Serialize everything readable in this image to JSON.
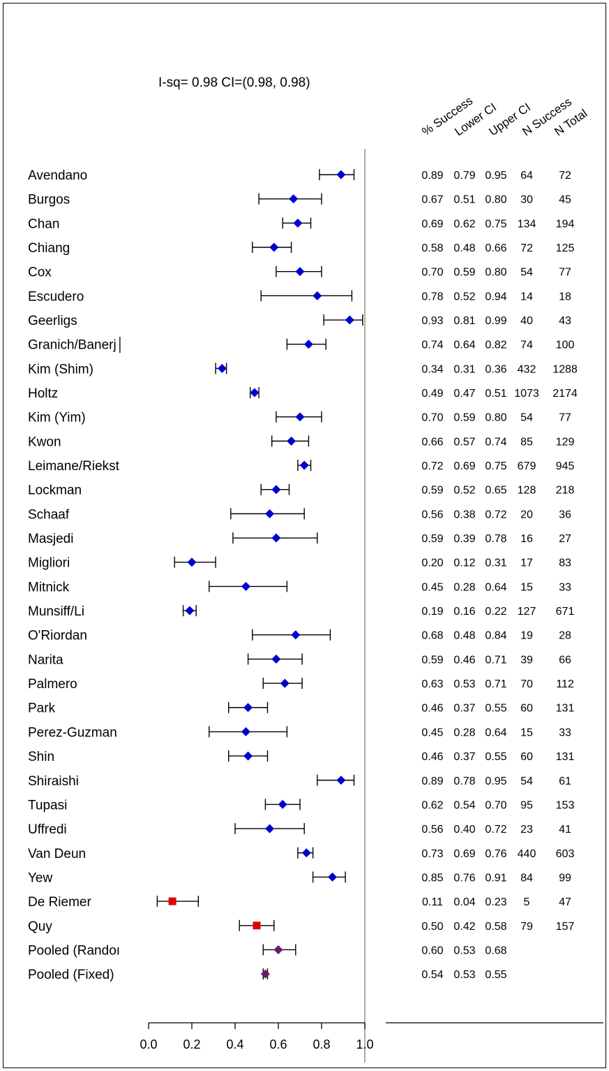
{
  "chart_data": {
    "type": "forest",
    "title": "I-sq= 0.98 CI=(0.98, 0.98)",
    "xlim": [
      0.0,
      1.0
    ],
    "x_ticks": [
      "0.0",
      "0.2",
      "0.4",
      "0.6",
      "0.8",
      "1.0"
    ],
    "column_headers": [
      "% Success",
      "Lower CI",
      "Upper CI",
      "N Success",
      "N Total"
    ],
    "colors": {
      "diamond": "#0000cc",
      "square": "#e00000",
      "pooled": "#6a1a6a",
      "reference_line": "#808080"
    },
    "rows": [
      {
        "study": "Avendano",
        "marker": "diamond",
        "est": 0.89,
        "lo": 0.79,
        "hi": 0.95,
        "pct": "0.89",
        "low": "0.79",
        "up": "0.95",
        "ns": "64",
        "nt": "72"
      },
      {
        "study": "Burgos",
        "marker": "diamond",
        "est": 0.67,
        "lo": 0.51,
        "hi": 0.8,
        "pct": "0.67",
        "low": "0.51",
        "up": "0.80",
        "ns": "30",
        "nt": "45"
      },
      {
        "study": "Chan",
        "marker": "diamond",
        "est": 0.69,
        "lo": 0.62,
        "hi": 0.75,
        "pct": "0.69",
        "low": "0.62",
        "up": "0.75",
        "ns": "134",
        "nt": "194"
      },
      {
        "study": "Chiang",
        "marker": "diamond",
        "est": 0.58,
        "lo": 0.48,
        "hi": 0.66,
        "pct": "0.58",
        "low": "0.48",
        "up": "0.66",
        "ns": "72",
        "nt": "125"
      },
      {
        "study": "Cox",
        "marker": "diamond",
        "est": 0.7,
        "lo": 0.59,
        "hi": 0.8,
        "pct": "0.70",
        "low": "0.59",
        "up": "0.80",
        "ns": "54",
        "nt": "77"
      },
      {
        "study": "Escudero",
        "marker": "diamond",
        "est": 0.78,
        "lo": 0.52,
        "hi": 0.94,
        "pct": "0.78",
        "low": "0.52",
        "up": "0.94",
        "ns": "14",
        "nt": "18"
      },
      {
        "study": "Geerligs",
        "marker": "diamond",
        "est": 0.93,
        "lo": 0.81,
        "hi": 0.99,
        "pct": "0.93",
        "low": "0.81",
        "up": "0.99",
        "ns": "40",
        "nt": "43"
      },
      {
        "study": "Granich/Banerj│",
        "marker": "diamond",
        "est": 0.74,
        "lo": 0.64,
        "hi": 0.82,
        "pct": "0.74",
        "low": "0.64",
        "up": "0.82",
        "ns": "74",
        "nt": "100"
      },
      {
        "study": "Kim (Shim)",
        "marker": "diamond",
        "est": 0.34,
        "lo": 0.31,
        "hi": 0.36,
        "pct": "0.34",
        "low": "0.31",
        "up": "0.36",
        "ns": "432",
        "nt": "1288"
      },
      {
        "study": "Holtz",
        "marker": "diamond",
        "est": 0.49,
        "lo": 0.47,
        "hi": 0.51,
        "pct": "0.49",
        "low": "0.47",
        "up": "0.51",
        "ns": "1073",
        "nt": "2174"
      },
      {
        "study": "Kim (Yim)",
        "marker": "diamond",
        "est": 0.7,
        "lo": 0.59,
        "hi": 0.8,
        "pct": "0.70",
        "low": "0.59",
        "up": "0.80",
        "ns": "54",
        "nt": "77"
      },
      {
        "study": "Kwon",
        "marker": "diamond",
        "est": 0.66,
        "lo": 0.57,
        "hi": 0.74,
        "pct": "0.66",
        "low": "0.57",
        "up": "0.74",
        "ns": "85",
        "nt": "129"
      },
      {
        "study": "Leimane/Riekst",
        "marker": "diamond",
        "est": 0.72,
        "lo": 0.69,
        "hi": 0.75,
        "pct": "0.72",
        "low": "0.69",
        "up": "0.75",
        "ns": "679",
        "nt": "945"
      },
      {
        "study": "Lockman",
        "marker": "diamond",
        "est": 0.59,
        "lo": 0.52,
        "hi": 0.65,
        "pct": "0.59",
        "low": "0.52",
        "up": "0.65",
        "ns": "128",
        "nt": "218"
      },
      {
        "study": "Schaaf",
        "marker": "diamond",
        "est": 0.56,
        "lo": 0.38,
        "hi": 0.72,
        "pct": "0.56",
        "low": "0.38",
        "up": "0.72",
        "ns": "20",
        "nt": "36"
      },
      {
        "study": "Masjedi",
        "marker": "diamond",
        "est": 0.59,
        "lo": 0.39,
        "hi": 0.78,
        "pct": "0.59",
        "low": "0.39",
        "up": "0.78",
        "ns": "16",
        "nt": "27"
      },
      {
        "study": "Migliori",
        "marker": "diamond",
        "est": 0.2,
        "lo": 0.12,
        "hi": 0.31,
        "pct": "0.20",
        "low": "0.12",
        "up": "0.31",
        "ns": "17",
        "nt": "83"
      },
      {
        "study": "Mitnick",
        "marker": "diamond",
        "est": 0.45,
        "lo": 0.28,
        "hi": 0.64,
        "pct": "0.45",
        "low": "0.28",
        "up": "0.64",
        "ns": "15",
        "nt": "33"
      },
      {
        "study": "Munsiff/Li",
        "marker": "diamond",
        "est": 0.19,
        "lo": 0.16,
        "hi": 0.22,
        "pct": "0.19",
        "low": "0.16",
        "up": "0.22",
        "ns": "127",
        "nt": "671"
      },
      {
        "study": "O'Riordan",
        "marker": "diamond",
        "est": 0.68,
        "lo": 0.48,
        "hi": 0.84,
        "pct": "0.68",
        "low": "0.48",
        "up": "0.84",
        "ns": "19",
        "nt": "28"
      },
      {
        "study": "Narita",
        "marker": "diamond",
        "est": 0.59,
        "lo": 0.46,
        "hi": 0.71,
        "pct": "0.59",
        "low": "0.46",
        "up": "0.71",
        "ns": "39",
        "nt": "66"
      },
      {
        "study": "Palmero",
        "marker": "diamond",
        "est": 0.63,
        "lo": 0.53,
        "hi": 0.71,
        "pct": "0.63",
        "low": "0.53",
        "up": "0.71",
        "ns": "70",
        "nt": "112"
      },
      {
        "study": "Park",
        "marker": "diamond",
        "est": 0.46,
        "lo": 0.37,
        "hi": 0.55,
        "pct": "0.46",
        "low": "0.37",
        "up": "0.55",
        "ns": "60",
        "nt": "131"
      },
      {
        "study": "Perez-Guzman",
        "marker": "diamond",
        "est": 0.45,
        "lo": 0.28,
        "hi": 0.64,
        "pct": "0.45",
        "low": "0.28",
        "up": "0.64",
        "ns": "15",
        "nt": "33"
      },
      {
        "study": "Shin",
        "marker": "diamond",
        "est": 0.46,
        "lo": 0.37,
        "hi": 0.55,
        "pct": "0.46",
        "low": "0.37",
        "up": "0.55",
        "ns": "60",
        "nt": "131"
      },
      {
        "study": "Shiraishi",
        "marker": "diamond",
        "est": 0.89,
        "lo": 0.78,
        "hi": 0.95,
        "pct": "0.89",
        "low": "0.78",
        "up": "0.95",
        "ns": "54",
        "nt": "61"
      },
      {
        "study": "Tupasi",
        "marker": "diamond",
        "est": 0.62,
        "lo": 0.54,
        "hi": 0.7,
        "pct": "0.62",
        "low": "0.54",
        "up": "0.70",
        "ns": "95",
        "nt": "153"
      },
      {
        "study": "Uffredi",
        "marker": "diamond",
        "est": 0.56,
        "lo": 0.4,
        "hi": 0.72,
        "pct": "0.56",
        "low": "0.40",
        "up": "0.72",
        "ns": "23",
        "nt": "41"
      },
      {
        "study": "Van Deun",
        "marker": "diamond",
        "est": 0.73,
        "lo": 0.69,
        "hi": 0.76,
        "pct": "0.73",
        "low": "0.69",
        "up": "0.76",
        "ns": "440",
        "nt": "603"
      },
      {
        "study": "Yew",
        "marker": "diamond",
        "est": 0.85,
        "lo": 0.76,
        "hi": 0.91,
        "pct": "0.85",
        "low": "0.76",
        "up": "0.91",
        "ns": "84",
        "nt": "99"
      },
      {
        "study": "De Riemer",
        "marker": "square",
        "est": 0.11,
        "lo": 0.04,
        "hi": 0.23,
        "pct": "0.11",
        "low": "0.04",
        "up": "0.23",
        "ns": "5",
        "nt": "47"
      },
      {
        "study": "Quy",
        "marker": "square",
        "est": 0.5,
        "lo": 0.42,
        "hi": 0.58,
        "pct": "0.50",
        "low": "0.42",
        "up": "0.58",
        "ns": "79",
        "nt": "157"
      },
      {
        "study": "Pooled (Randoı",
        "marker": "pooled",
        "est": 0.6,
        "lo": 0.53,
        "hi": 0.68,
        "pct": "0.60",
        "low": "0.53",
        "up": "0.68",
        "ns": "",
        "nt": ""
      },
      {
        "study": "Pooled (Fixed)",
        "marker": "pooled",
        "est": 0.54,
        "lo": 0.53,
        "hi": 0.55,
        "pct": "0.54",
        "low": "0.53",
        "up": "0.55",
        "ns": "",
        "nt": ""
      }
    ]
  }
}
